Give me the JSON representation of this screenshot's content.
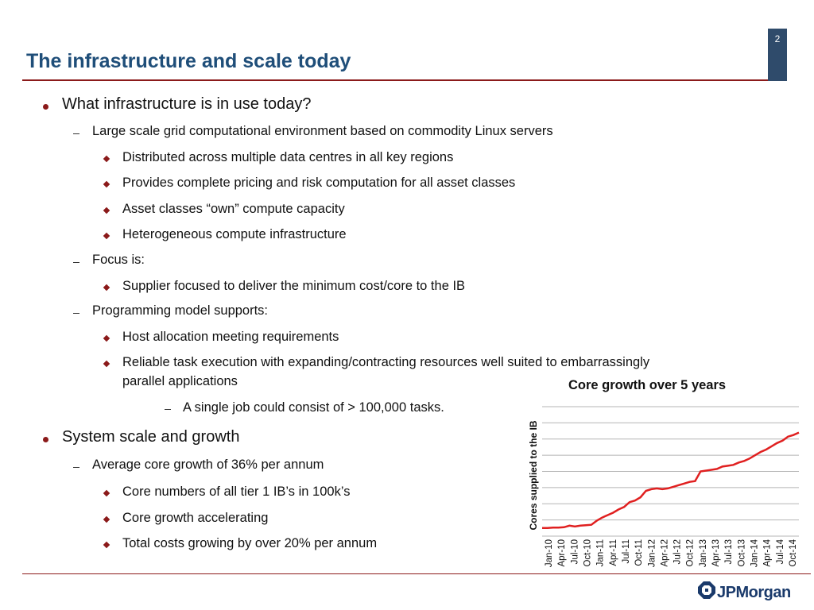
{
  "slide": {
    "title": "The infrastructure and scale today",
    "page_number": "2"
  },
  "bullets": {
    "b1": "What infrastructure is in use today?",
    "b1_1": "Large scale grid computational environment based on commodity Linux servers",
    "b1_1_1": "Distributed across multiple data centres in all key regions",
    "b1_1_2": "Provides complete pricing and risk computation for all asset classes",
    "b1_1_3": "Asset classes “own” compute capacity",
    "b1_1_4": "Heterogeneous compute infrastructure",
    "b1_2": "Focus is:",
    "b1_2_1": "Supplier focused to deliver the minimum cost/core to the IB",
    "b1_3": "Programming model supports:",
    "b1_3_1": "Host allocation meeting requirements",
    "b1_3_2a": "Reliable task execution with expanding/contracting resources well suited to embarrassingly",
    "b1_3_2b": "parallel applications",
    "b1_3_2_1": "A single job could consist of > 100,000 tasks.",
    "b2": "System scale and growth",
    "b2_1": "Average core growth of 36% per annum",
    "b2_1_1": "Core numbers of all tier 1 IB’s in 100k’s",
    "b2_1_2": "Core growth accelerating",
    "b2_1_3": "Total costs growing by over 20% per annum"
  },
  "logo": {
    "text": "JPMorgan"
  },
  "chart_data": {
    "type": "line",
    "title": "Core growth over 5 years",
    "xlabel": "",
    "ylabel": "Cores supplied to the IB",
    "y_axis_labels_shown": false,
    "grid": "horizontal",
    "line_color": "#e02020",
    "x_tick_labels": [
      "Jan-10",
      "Apr-10",
      "Jul-10",
      "Oct-10",
      "Jan-11",
      "Apr-11",
      "Jul-11",
      "Oct-11",
      "Jan-12",
      "Apr-12",
      "Jul-12",
      "Oct-12",
      "Jan-13",
      "Apr-13",
      "Jul-13",
      "Oct-13",
      "Jan-14",
      "Apr-14",
      "Jul-14",
      "Oct-14"
    ],
    "series": [
      {
        "values": [
          1.0,
          1.0,
          1.05,
          1.05,
          1.1,
          1.3,
          1.2,
          1.3,
          1.35,
          1.4,
          1.9,
          2.3,
          2.6,
          2.9,
          3.3,
          3.6,
          4.2,
          4.4,
          4.8,
          5.6,
          5.8,
          5.9,
          5.8,
          5.9,
          6.1,
          6.3,
          6.5,
          6.7,
          6.8,
          8.0,
          8.1,
          8.2,
          8.3,
          8.6,
          8.7,
          8.8,
          9.1,
          9.3,
          9.6,
          10.0,
          10.4,
          10.7,
          11.1,
          11.5,
          11.8,
          12.3,
          12.5,
          12.8
        ]
      }
    ]
  }
}
